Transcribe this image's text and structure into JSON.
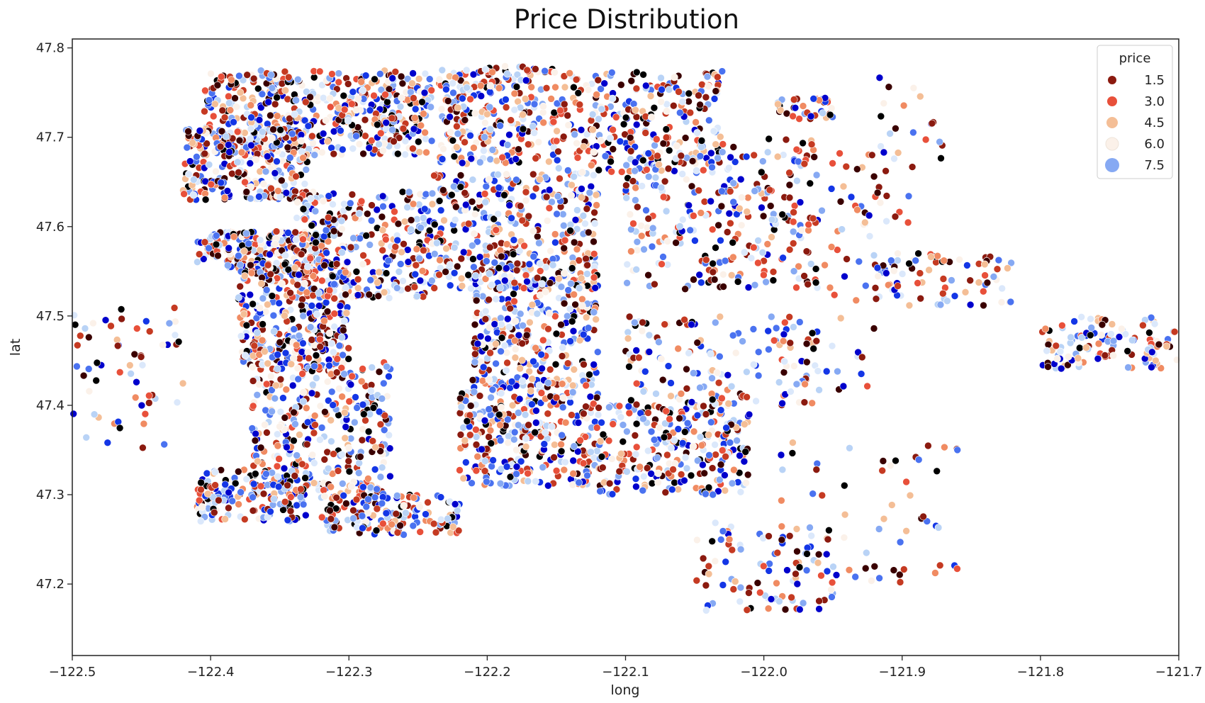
{
  "chart_data": {
    "type": "scatter",
    "title": "Price Distribution",
    "xlabel": "long",
    "ylabel": "lat",
    "xlim": [
      -122.5,
      -121.7
    ],
    "ylim": [
      47.12,
      47.81
    ],
    "xticks": [
      -122.5,
      -122.4,
      -122.3,
      -122.2,
      -122.1,
      -122.0,
      -121.9,
      -121.8,
      -121.7
    ],
    "xtick_labels": [
      "−122.5",
      "−122.4",
      "−122.3",
      "−122.2",
      "−122.1",
      "−122.0",
      "−121.9",
      "−121.8",
      "−121.7"
    ],
    "yticks": [
      47.2,
      47.3,
      47.4,
      47.5,
      47.6,
      47.7,
      47.8
    ],
    "ytick_labels": [
      "47.2",
      "47.3",
      "47.4",
      "47.5",
      "47.6",
      "47.7",
      "47.8"
    ],
    "grid": false,
    "legend": {
      "title": "price",
      "placement": "top-right",
      "entries": [
        {
          "label": "1.5",
          "color": "#8b1a0f"
        },
        {
          "label": "3.0",
          "color": "#e8503a"
        },
        {
          "label": "4.5",
          "color": "#f4be96"
        },
        {
          "label": "6.0",
          "color": "#fbf1e9"
        },
        {
          "label": "7.5",
          "color": "#86a9f3"
        }
      ]
    },
    "palette": [
      "#000000",
      "#3a0000",
      "#8b1a0f",
      "#c53a22",
      "#e8503a",
      "#f08b62",
      "#f4be96",
      "#fbf1e9",
      "#dbe8fb",
      "#b9d3f6",
      "#86a9f3",
      "#4a72f0",
      "#1436e6",
      "#0000cc"
    ],
    "clusters": [
      {
        "lon": [
          -122.405,
          -122.24
        ],
        "lat": [
          47.68,
          47.775
        ],
        "n": 520
      },
      {
        "lon": [
          -122.42,
          -122.33
        ],
        "lat": [
          47.63,
          47.71
        ],
        "n": 260
      },
      {
        "lon": [
          -122.41,
          -122.32
        ],
        "lat": [
          47.55,
          47.595
        ],
        "n": 200
      },
      {
        "lon": [
          -122.38,
          -122.3
        ],
        "lat": [
          47.44,
          47.56
        ],
        "n": 320
      },
      {
        "lon": [
          -122.37,
          -122.27
        ],
        "lat": [
          47.3,
          47.45
        ],
        "n": 320
      },
      {
        "lon": [
          -122.41,
          -122.33
        ],
        "lat": [
          47.27,
          47.33
        ],
        "n": 160
      },
      {
        "lon": [
          -122.32,
          -122.22
        ],
        "lat": [
          47.255,
          47.3
        ],
        "n": 160
      },
      {
        "lon": [
          -122.34,
          -122.24
        ],
        "lat": [
          47.52,
          47.64
        ],
        "n": 300
      },
      {
        "lon": [
          -122.235,
          -122.15
        ],
        "lat": [
          47.67,
          47.78
        ],
        "n": 260
      },
      {
        "lon": [
          -122.24,
          -122.12
        ],
        "lat": [
          47.53,
          47.66
        ],
        "n": 360
      },
      {
        "lon": [
          -122.21,
          -122.12
        ],
        "lat": [
          47.42,
          47.56
        ],
        "n": 300
      },
      {
        "lon": [
          -122.22,
          -122.12
        ],
        "lat": [
          47.31,
          47.43
        ],
        "n": 340
      },
      {
        "lon": [
          -122.15,
          -122.03
        ],
        "lat": [
          47.66,
          47.775
        ],
        "n": 260
      },
      {
        "lon": [
          -122.1,
          -121.96
        ],
        "lat": [
          47.53,
          47.7
        ],
        "n": 300
      },
      {
        "lon": [
          -122.12,
          -122.01
        ],
        "lat": [
          47.3,
          47.4
        ],
        "n": 260
      },
      {
        "lon": [
          -122.1,
          -121.96
        ],
        "lat": [
          47.4,
          47.5
        ],
        "n": 150
      },
      {
        "lon": [
          -122.05,
          -121.95
        ],
        "lat": [
          47.17,
          47.27
        ],
        "n": 90
      },
      {
        "lon": [
          -121.99,
          -121.86
        ],
        "lat": [
          47.2,
          47.36
        ],
        "n": 60
      },
      {
        "lon": [
          -121.99,
          -121.95
        ],
        "lat": [
          47.72,
          47.745
        ],
        "n": 40
      },
      {
        "lon": [
          -121.92,
          -121.82
        ],
        "lat": [
          47.51,
          47.57
        ],
        "n": 80
      },
      {
        "lon": [
          -121.93,
          -121.87
        ],
        "lat": [
          47.6,
          47.77
        ],
        "n": 40
      },
      {
        "lon": [
          -121.8,
          -121.7
        ],
        "lat": [
          47.44,
          47.5
        ],
        "n": 120
      },
      {
        "lon": [
          -122.5,
          -122.42
        ],
        "lat": [
          47.35,
          47.51
        ],
        "n": 60
      },
      {
        "lon": [
          -121.96,
          -121.92
        ],
        "lat": [
          47.4,
          47.7
        ],
        "n": 40
      }
    ]
  }
}
